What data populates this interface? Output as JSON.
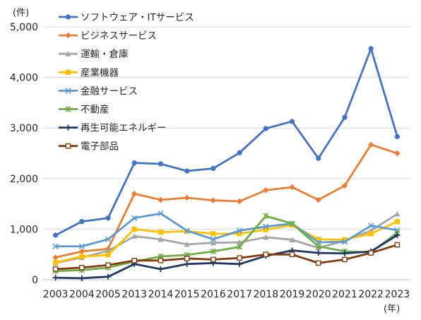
{
  "chart_data": {
    "type": "line",
    "y_unit_label": "(件)",
    "x_unit_label": "(年)",
    "ylim": [
      0,
      5000
    ],
    "yticks": [
      "0",
      "1,000",
      "2,000",
      "3,000",
      "4,000",
      "5,000"
    ],
    "ytick_values": [
      0,
      1000,
      2000,
      3000,
      4000,
      5000
    ],
    "grid": "horizontal",
    "legend_position": "top-center",
    "categories": [
      "2003",
      "2004",
      "2005",
      "2013",
      "2014",
      "2015",
      "2016",
      "2017",
      "2018",
      "2019",
      "2020",
      "2021",
      "2022",
      "2023"
    ],
    "series": [
      {
        "name": "ソフトウェア・ITサービス",
        "color": "#4472C4",
        "marker": "circle",
        "values": [
          880,
          1150,
          1220,
          2310,
          2290,
          2150,
          2200,
          2510,
          2990,
          3130,
          2400,
          3210,
          4570,
          2830
        ]
      },
      {
        "name": "ビジネスサービス",
        "color": "#ED7D31",
        "marker": "diamond",
        "values": [
          440,
          560,
          610,
          1700,
          1580,
          1620,
          1570,
          1550,
          1770,
          1830,
          1580,
          1860,
          2670,
          2500
        ]
      },
      {
        "name": "運輸・倉庫",
        "color": "#A5A5A5",
        "marker": "triangle",
        "values": [
          330,
          440,
          570,
          860,
          800,
          700,
          730,
          740,
          840,
          790,
          630,
          770,
          970,
          1300
        ]
      },
      {
        "name": "産業機器",
        "color": "#FFC000",
        "marker": "square",
        "values": [
          340,
          460,
          490,
          1000,
          940,
          960,
          910,
          910,
          990,
          1080,
          800,
          790,
          910,
          1150
        ]
      },
      {
        "name": "金融サービス",
        "color": "#5B9BD5",
        "marker": "x",
        "values": [
          660,
          660,
          800,
          1220,
          1310,
          970,
          800,
          970,
          1050,
          1110,
          740,
          750,
          1070,
          980
        ]
      },
      {
        "name": "不動産",
        "color": "#70AD47",
        "marker": "star",
        "values": [
          170,
          190,
          240,
          360,
          460,
          490,
          560,
          650,
          1260,
          1110,
          660,
          560,
          540,
          930
        ]
      },
      {
        "name": "再生可能エネルギー",
        "color": "#1F3864",
        "marker": "plus",
        "values": [
          40,
          30,
          60,
          310,
          210,
          310,
          330,
          310,
          470,
          580,
          530,
          520,
          560,
          880
        ]
      },
      {
        "name": "電子部品",
        "color": "#843C0C",
        "marker": "hollow-square",
        "values": [
          210,
          240,
          290,
          380,
          380,
          420,
          400,
          430,
          500,
          500,
          330,
          400,
          530,
          690
        ]
      }
    ]
  }
}
